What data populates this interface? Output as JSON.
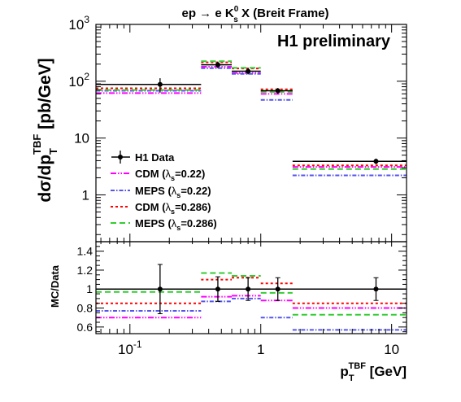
{
  "chart_data": [
    {
      "type": "line",
      "title": "ep → e K_s^0 X (Breit Frame)",
      "title_parts": {
        "pre": "ep ",
        "arrow": "→",
        "mid": " e K",
        "sup": "0",
        "sub": "s",
        "post": " X (Breit Frame)"
      },
      "watermark": "H1 preliminary",
      "ylabel": "dσ/dp_T^TBF [pb/GeV]",
      "ylabel_parts": {
        "main": "dσ/dp",
        "sub": "T",
        "sup": "TBF",
        "unit": " [pb/GeV]"
      },
      "xscale": "log",
      "yscale": "log",
      "xlim": [
        0.055,
        13
      ],
      "ylim": [
        0.15,
        1000
      ],
      "ytick_labels": [
        {
          "value": 1,
          "text": "1"
        },
        {
          "value": 10,
          "text": "10"
        },
        {
          "value": 100,
          "base": "10",
          "exp": "2"
        },
        {
          "value": 1000,
          "base": "10",
          "exp": "3"
        }
      ],
      "bins": [
        {
          "low": 0.055,
          "high": 0.35,
          "center": 0.17
        },
        {
          "low": 0.35,
          "high": 0.6,
          "center": 0.47
        },
        {
          "low": 0.6,
          "high": 1.0,
          "center": 0.8
        },
        {
          "low": 1.0,
          "high": 1.75,
          "center": 1.35
        },
        {
          "low": 1.75,
          "high": 13,
          "center": 7.6
        }
      ],
      "data": {
        "name": "H1 Data",
        "values": [
          88,
          195,
          150,
          68,
          3.9
        ],
        "errors": [
          25,
          25,
          18,
          8,
          0.45
        ]
      },
      "series": [
        {
          "name": "CDM (λs=0.22)",
          "label": "CDM (",
          "lambda_sub": "s",
          "param": "=0.22)",
          "color": "#ff00ff",
          "dash": "7,2,1.5,2,1.5,2",
          "values": [
            62,
            180,
            140,
            60,
            3.1
          ]
        },
        {
          "name": "MEPS (λs=0.22)",
          "label": "MEPS (",
          "lambda_sub": "s",
          "param": "=0.22)",
          "color": "#5555ee",
          "dash": "5,2,1.5,2",
          "values": [
            68,
            170,
            135,
            47,
            2.2
          ]
        },
        {
          "name": "CDM (λs=0.286)",
          "label": "CDM (",
          "lambda_sub": "s",
          "param": "=0.286)",
          "color": "#ff0000",
          "dash": "3,3",
          "values": [
            75,
            215,
            168,
            72,
            3.3
          ]
        },
        {
          "name": "MEPS (λs=0.286)",
          "label": "MEPS (",
          "lambda_sub": "s",
          "param": "=0.286)",
          "color": "#33cc33",
          "dash": "7,4",
          "values": [
            70,
            225,
            172,
            65,
            2.85
          ]
        }
      ],
      "legend_entries": [
        {
          "label": "H1 Data"
        },
        {
          "label": "CDM (",
          "sub": "s",
          "param": "=0.22)"
        },
        {
          "label": "MEPS (",
          "sub": "s",
          "param": "=0.22)"
        },
        {
          "label": "CDM (",
          "sub": "s",
          "param": "=0.286)"
        },
        {
          "label": "MEPS (",
          "sub": "s",
          "param": "=0.286)"
        }
      ],
      "legend_position": "left"
    },
    {
      "type": "line",
      "ylabel": "MC/Data",
      "xlabel": "p_T^TBF [GeV]",
      "xlabel_parts": {
        "main": "p",
        "sub": "T",
        "sup": "TBF",
        "unit": " [GeV]"
      },
      "xscale": "log",
      "xlim": [
        0.055,
        13
      ],
      "ylim": [
        0.53,
        1.5
      ],
      "xtick_labels": [
        {
          "value": 0.1,
          "base": "10",
          "exp": "-1"
        },
        {
          "value": 1,
          "text": "1"
        },
        {
          "value": 10,
          "text": "10"
        }
      ],
      "ytick_labels": [
        "0.6",
        "0.8",
        "1",
        "1.2",
        "1.4"
      ],
      "ytick_values": [
        0.6,
        0.8,
        1.0,
        1.2,
        1.4
      ],
      "reference_line": 1.0,
      "data_points": {
        "centers": [
          0.17,
          0.47,
          0.8,
          1.35,
          7.6
        ],
        "values": [
          1.0,
          1.0,
          1.0,
          1.0,
          1.0
        ],
        "errors": [
          0.26,
          0.13,
          0.12,
          0.12,
          0.12
        ]
      },
      "series": [
        {
          "name": "CDM (λs=0.22)",
          "color": "#ff00ff",
          "dash": "7,2,1.5,2,1.5,2",
          "values": [
            0.7,
            0.92,
            0.93,
            0.88,
            0.8
          ]
        },
        {
          "name": "MEPS (λs=0.22)",
          "color": "#5555ee",
          "dash": "5,2,1.5,2",
          "values": [
            0.77,
            0.87,
            0.9,
            0.7,
            0.57
          ]
        },
        {
          "name": "CDM (λs=0.286)",
          "color": "#ff0000",
          "dash": "3,3",
          "values": [
            0.85,
            1.1,
            1.12,
            1.06,
            0.85
          ]
        },
        {
          "name": "MEPS (λs=0.286)",
          "color": "#33cc33",
          "dash": "7,4",
          "values": [
            0.97,
            1.17,
            1.14,
            0.96,
            0.73
          ]
        }
      ]
    }
  ]
}
